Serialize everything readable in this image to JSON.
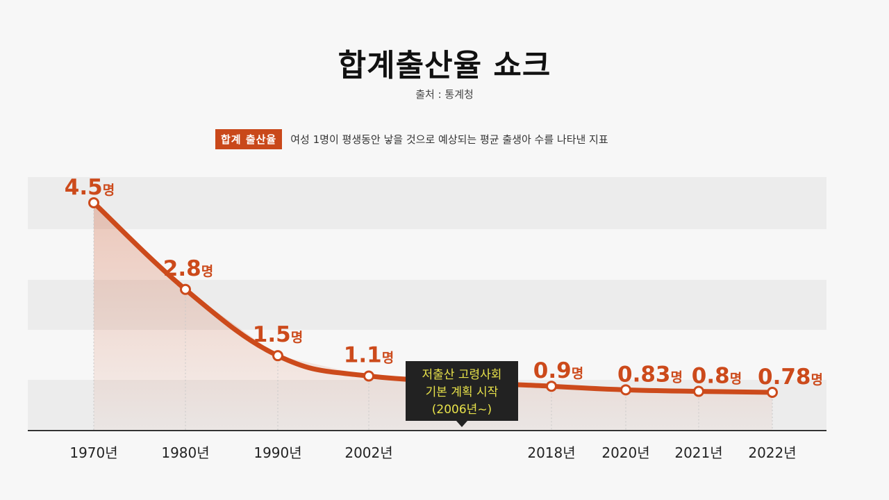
{
  "title": "합계출산율 쇼크",
  "source": "출처 : 통계청",
  "definition": {
    "badge": "합계 출산율",
    "text": "여성 1명이 평생동안 낳을 것으로 예상되는 평균 출생아 수를 나타낸 지표"
  },
  "colors": {
    "accent": "#cc4a1b",
    "callout_bg": "#222222",
    "callout_text": "#e8e24a"
  },
  "chart_data": {
    "type": "line",
    "categories": [
      "1970년",
      "1980년",
      "1990년",
      "2002년",
      "2018년",
      "2020년",
      "2021년",
      "2022년"
    ],
    "x": [
      1970,
      1980,
      1990,
      2002,
      2018,
      2020,
      2021,
      2022
    ],
    "values": [
      4.5,
      2.8,
      1.5,
      1.1,
      0.9,
      0.83,
      0.8,
      0.78
    ],
    "value_labels": [
      "4.5",
      "2.8",
      "1.5",
      "1.1",
      "0.9",
      "0.83",
      "0.8",
      "0.78"
    ],
    "unit": "명",
    "ylim": [
      0,
      4.5
    ],
    "grid": "alternating horizontal bands",
    "annotation": {
      "lines": [
        "저출산 고령사회",
        "기본 계획 시작",
        "(2006년~)"
      ]
    }
  }
}
